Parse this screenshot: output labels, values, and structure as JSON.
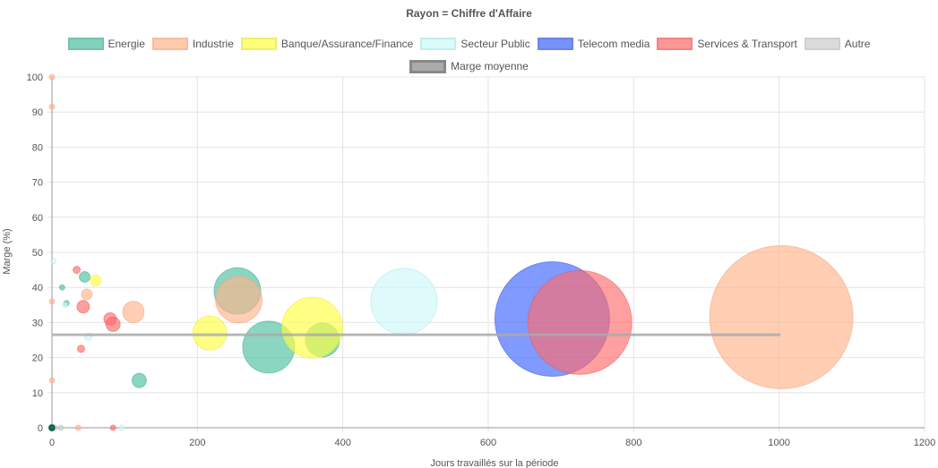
{
  "chart_data": {
    "type": "scatter",
    "subtype": "bubble",
    "title": "Rayon  = Chiffre d'Affaire",
    "xlabel": "Jours travaillés sur la période",
    "ylabel": "Marge (%)",
    "xlim": [
      0,
      1200
    ],
    "ylim": [
      0,
      100
    ],
    "x_ticks": [
      0,
      200,
      400,
      600,
      800,
      1000,
      1200
    ],
    "y_ticks": [
      0,
      10,
      20,
      30,
      40,
      50,
      60,
      70,
      80,
      90,
      100
    ],
    "grid": true,
    "legend_position": "top",
    "series": [
      {
        "name": "Energie",
        "color": "#4bc0a0",
        "border": "#3aa88a",
        "points": [
          {
            "x": 0,
            "y": 0,
            "r": 4
          },
          {
            "x": 14,
            "y": 40,
            "r": 3
          },
          {
            "x": 20,
            "y": 35.5,
            "r": 3
          },
          {
            "x": 45,
            "y": 43,
            "r": 6
          },
          {
            "x": 120,
            "y": 13.5,
            "r": 8
          },
          {
            "x": 255,
            "y": 39,
            "r": 26
          },
          {
            "x": 298,
            "y": 23,
            "r": 29
          },
          {
            "x": 372,
            "y": 25,
            "r": 19
          }
        ]
      },
      {
        "name": "Industrie",
        "color": "#ffb38a",
        "border": "#f4a07a",
        "points": [
          {
            "x": 0,
            "y": 100,
            "r": 3
          },
          {
            "x": 0,
            "y": 91.5,
            "r": 3
          },
          {
            "x": 0,
            "y": 36,
            "r": 3
          },
          {
            "x": 0,
            "y": 13.5,
            "r": 3
          },
          {
            "x": 36,
            "y": 0,
            "r": 3
          },
          {
            "x": 48,
            "y": 38,
            "r": 6
          },
          {
            "x": 112,
            "y": 33,
            "r": 12
          },
          {
            "x": 257,
            "y": 36.5,
            "r": 26
          },
          {
            "x": 1003,
            "y": 31.5,
            "r": 80
          }
        ]
      },
      {
        "name": "Banque/Assurance/Finance",
        "color": "#ffff40",
        "border": "#e8e830",
        "points": [
          {
            "x": 60,
            "y": 42,
            "r": 6
          },
          {
            "x": 217,
            "y": 27,
            "r": 19
          },
          {
            "x": 358,
            "y": 28.5,
            "r": 34
          }
        ]
      },
      {
        "name": "Secteur Public",
        "color": "#ccf8f8",
        "border": "#a8e8e8",
        "points": [
          {
            "x": 2,
            "y": 47.5,
            "r": 3
          },
          {
            "x": 18,
            "y": 35,
            "r": 3
          },
          {
            "x": 50,
            "y": 26,
            "r": 4
          },
          {
            "x": 96,
            "y": 0,
            "r": 3
          },
          {
            "x": 484,
            "y": 36,
            "r": 37
          }
        ]
      },
      {
        "name": "Telecom media",
        "color": "#3c64ff",
        "border": "#3050e0",
        "points": [
          {
            "x": 688,
            "y": 31,
            "r": 64
          }
        ]
      },
      {
        "name": "Services & Transport",
        "color": "#ff6b6b",
        "border": "#f05050",
        "points": [
          {
            "x": 34,
            "y": 45,
            "r": 4
          },
          {
            "x": 40,
            "y": 22.5,
            "r": 4
          },
          {
            "x": 43,
            "y": 34.5,
            "r": 7
          },
          {
            "x": 80,
            "y": 31,
            "r": 7
          },
          {
            "x": 84,
            "y": 29.5,
            "r": 8
          },
          {
            "x": 84,
            "y": 0,
            "r": 3
          },
          {
            "x": 726,
            "y": 30,
            "r": 58
          }
        ]
      },
      {
        "name": "Autre",
        "color": "#cccccc",
        "border": "#bbbbbb",
        "points": [
          {
            "x": 4,
            "y": 0,
            "r": 3
          },
          {
            "x": 12,
            "y": 0,
            "r": 3
          }
        ]
      },
      {
        "name": "Marge moyenne",
        "type": "line",
        "color": "#aaaaaa",
        "border": "#888888",
        "points": [
          {
            "x": 0,
            "y": 26.5
          },
          {
            "x": 1002,
            "y": 26.5
          }
        ]
      }
    ]
  }
}
